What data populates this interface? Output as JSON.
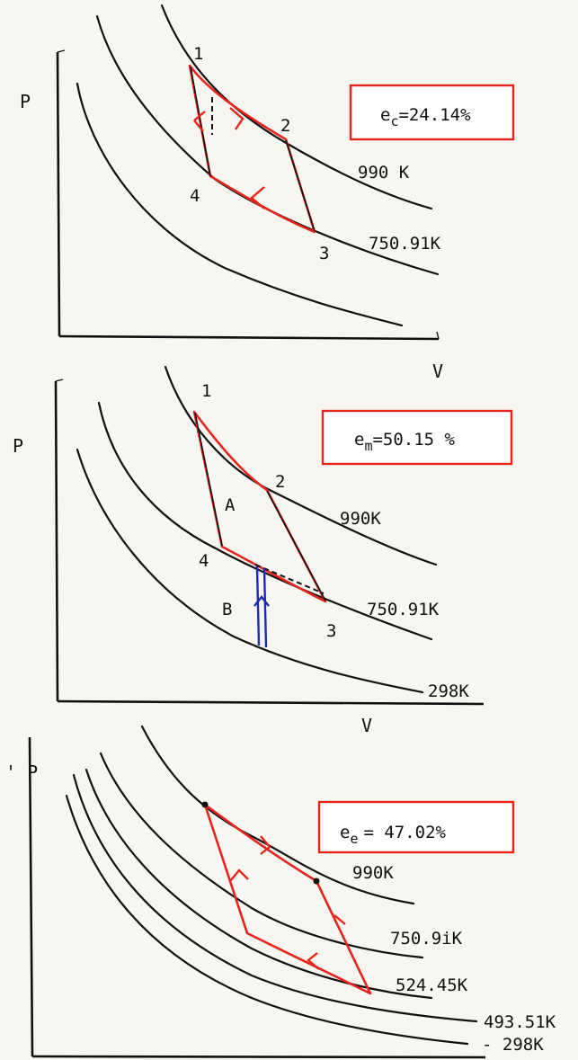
{
  "panels": [
    {
      "y_axis_label": "P",
      "x_axis_label": "V",
      "efficiency": {
        "symbol": "e",
        "subscript": "c",
        "value": "=24.14%"
      },
      "points": [
        "1",
        "2",
        "3",
        "4"
      ],
      "isotherms": [
        "990 K",
        "750.91K"
      ]
    },
    {
      "y_axis_label": "P",
      "x_axis_label": "V",
      "efficiency": {
        "symbol": "e",
        "subscript": "m",
        "value": "=50.15 %"
      },
      "points": [
        "1",
        "2",
        "3",
        "4"
      ],
      "regions": [
        "A",
        "B"
      ],
      "isotherms": [
        "990K",
        "750.91K",
        "298K"
      ]
    },
    {
      "y_axis_label": "' P",
      "efficiency": {
        "symbol": "e",
        "subscript": "e",
        "value": "= 47.02%"
      },
      "isotherms": [
        "990K",
        "750.9iK",
        "524.45K",
        "493.51K",
        "- 298K"
      ]
    }
  ],
  "colors": {
    "cycle": "#e8241c",
    "ink": "#111111",
    "efficiency_box": "#e8241c",
    "return_path": "#1a2db0"
  }
}
